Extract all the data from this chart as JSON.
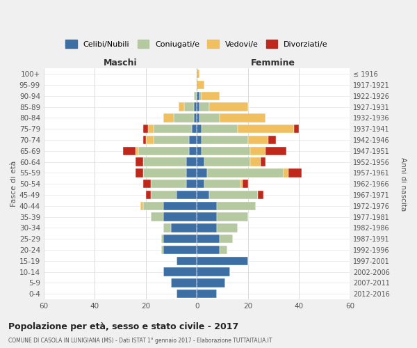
{
  "age_groups": [
    "0-4",
    "5-9",
    "10-14",
    "15-19",
    "20-24",
    "25-29",
    "30-34",
    "35-39",
    "40-44",
    "45-49",
    "50-54",
    "55-59",
    "60-64",
    "65-69",
    "70-74",
    "75-79",
    "80-84",
    "85-89",
    "90-94",
    "95-99",
    "100+"
  ],
  "birth_years": [
    "2012-2016",
    "2007-2011",
    "2002-2006",
    "1997-2001",
    "1992-1996",
    "1987-1991",
    "1982-1986",
    "1977-1981",
    "1972-1976",
    "1967-1971",
    "1962-1966",
    "1957-1961",
    "1952-1956",
    "1947-1951",
    "1942-1946",
    "1937-1941",
    "1932-1936",
    "1927-1931",
    "1922-1926",
    "1917-1921",
    "≤ 1916"
  ],
  "maschi": {
    "celibi": [
      8,
      10,
      13,
      8,
      13,
      13,
      10,
      13,
      13,
      8,
      4,
      4,
      4,
      3,
      3,
      2,
      1,
      1,
      0,
      0,
      0
    ],
    "coniugati": [
      0,
      0,
      0,
      0,
      1,
      1,
      3,
      5,
      8,
      10,
      14,
      17,
      17,
      20,
      14,
      15,
      8,
      4,
      1,
      0,
      0
    ],
    "vedovi": [
      0,
      0,
      0,
      0,
      0,
      0,
      0,
      0,
      1,
      0,
      0,
      0,
      0,
      1,
      3,
      2,
      4,
      2,
      0,
      0,
      0
    ],
    "divorziati": [
      0,
      0,
      0,
      0,
      0,
      0,
      0,
      0,
      0,
      2,
      3,
      3,
      3,
      5,
      1,
      2,
      0,
      0,
      0,
      0,
      0
    ]
  },
  "femmine": {
    "nubili": [
      8,
      11,
      13,
      20,
      9,
      9,
      8,
      8,
      8,
      5,
      3,
      4,
      3,
      2,
      2,
      2,
      1,
      1,
      1,
      0,
      0
    ],
    "coniugati": [
      0,
      0,
      0,
      0,
      3,
      5,
      8,
      12,
      15,
      19,
      14,
      30,
      18,
      19,
      18,
      14,
      8,
      4,
      1,
      0,
      0
    ],
    "vedovi": [
      0,
      0,
      0,
      0,
      0,
      0,
      0,
      0,
      0,
      0,
      1,
      2,
      4,
      6,
      8,
      22,
      18,
      15,
      7,
      3,
      1
    ],
    "divorziati": [
      0,
      0,
      0,
      0,
      0,
      0,
      0,
      0,
      0,
      2,
      2,
      5,
      2,
      8,
      3,
      2,
      0,
      0,
      0,
      0,
      0
    ]
  },
  "colors": {
    "celibi": "#3d6fa5",
    "coniugati": "#b5c9a0",
    "vedovi": "#f0c060",
    "divorziati": "#c0281c"
  },
  "xlim": 60,
  "title": "Popolazione per età, sesso e stato civile - 2017",
  "subtitle": "COMUNE DI CASOLA IN LUNIGIANA (MS) - Dati ISTAT 1° gennaio 2017 - Elaborazione TUTTAITALIA.IT",
  "ylabel": "Fasce di età",
  "ylabel_right": "Anni di nascita",
  "legend_labels": [
    "Celibi/Nubili",
    "Coniugati/e",
    "Vedovi/e",
    "Divorziati/e"
  ],
  "maschi_label": "Maschi",
  "femmine_label": "Femmine",
  "bg_color": "#f0f0f0",
  "plot_bg": "#ffffff"
}
